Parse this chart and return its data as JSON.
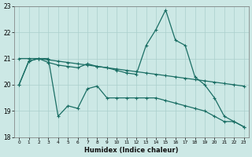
{
  "xlabel": "Humidex (Indice chaleur)",
  "xlim": [
    -0.5,
    23.5
  ],
  "ylim": [
    18,
    23
  ],
  "yticks": [
    18,
    19,
    20,
    21,
    22,
    23
  ],
  "xticks": [
    0,
    1,
    2,
    3,
    4,
    5,
    6,
    7,
    8,
    9,
    10,
    11,
    12,
    13,
    14,
    15,
    16,
    17,
    18,
    19,
    20,
    21,
    22,
    23
  ],
  "bg_color": "#cce8e5",
  "grid_color": "#aacfcc",
  "line_color": "#1a6e64",
  "line1_x": [
    0,
    1,
    2,
    3,
    4,
    5,
    6,
    7,
    8,
    9,
    10,
    11,
    12,
    13,
    14,
    15,
    16,
    17,
    18,
    19,
    20,
    21,
    22,
    23
  ],
  "line1_y": [
    21.0,
    21.0,
    21.0,
    20.95,
    20.9,
    20.85,
    20.8,
    20.75,
    20.7,
    20.65,
    20.6,
    20.55,
    20.5,
    20.45,
    20.4,
    20.35,
    20.3,
    20.25,
    20.2,
    20.15,
    20.1,
    20.05,
    20.0,
    19.95
  ],
  "line2_x": [
    0,
    1,
    2,
    3,
    4,
    5,
    6,
    7,
    8,
    9,
    10,
    11,
    12,
    13,
    14,
    15,
    16,
    17,
    18,
    19,
    20,
    21,
    22,
    23
  ],
  "line2_y": [
    20.0,
    20.9,
    21.0,
    20.85,
    20.75,
    20.7,
    20.65,
    20.8,
    20.7,
    20.65,
    20.55,
    20.45,
    20.4,
    21.5,
    22.1,
    22.85,
    21.7,
    21.5,
    20.3,
    20.0,
    19.5,
    18.8,
    18.6,
    18.4
  ],
  "line3_x": [
    0,
    1,
    2,
    3,
    4,
    5,
    6,
    7,
    8,
    9,
    10,
    11,
    12,
    13,
    14,
    15,
    16,
    17,
    18,
    19,
    20,
    21,
    22,
    23
  ],
  "line3_y": [
    20.0,
    20.9,
    21.0,
    21.0,
    18.8,
    19.2,
    19.1,
    19.85,
    19.95,
    19.5,
    19.5,
    19.5,
    19.5,
    19.5,
    19.5,
    19.4,
    19.3,
    19.2,
    19.1,
    19.0,
    18.8,
    18.6,
    18.6,
    18.4
  ],
  "marker_size": 3.5,
  "linewidth": 0.9
}
